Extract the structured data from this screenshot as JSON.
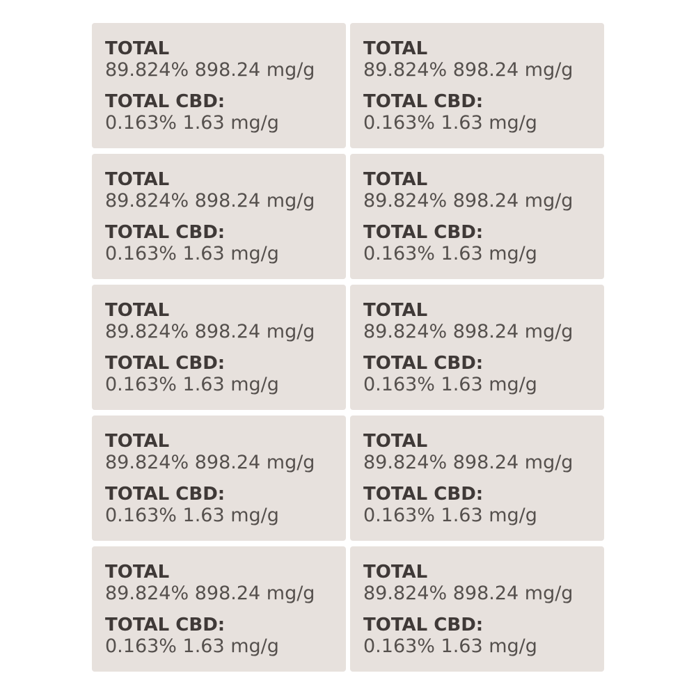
{
  "label_color": "#e7e1dd",
  "labels": [
    {
      "total_heading": "TOTAL",
      "total_value": "89.824% 898.24 mg/g",
      "cbd_heading": "TOTAL CBD:",
      "cbd_value": "0.163% 1.63 mg/g"
    },
    {
      "total_heading": "TOTAL",
      "total_value": "89.824% 898.24 mg/g",
      "cbd_heading": "TOTAL CBD:",
      "cbd_value": "0.163% 1.63 mg/g"
    },
    {
      "total_heading": "TOTAL",
      "total_value": "89.824% 898.24 mg/g",
      "cbd_heading": "TOTAL CBD:",
      "cbd_value": "0.163% 1.63 mg/g"
    },
    {
      "total_heading": "TOTAL",
      "total_value": "89.824% 898.24 mg/g",
      "cbd_heading": "TOTAL CBD:",
      "cbd_value": "0.163% 1.63 mg/g"
    },
    {
      "total_heading": "TOTAL",
      "total_value": "89.824% 898.24 mg/g",
      "cbd_heading": "TOTAL CBD:",
      "cbd_value": "0.163% 1.63 mg/g"
    },
    {
      "total_heading": "TOTAL",
      "total_value": "89.824% 898.24 mg/g",
      "cbd_heading": "TOTAL CBD:",
      "cbd_value": "0.163% 1.63 mg/g"
    },
    {
      "total_heading": "TOTAL",
      "total_value": "89.824% 898.24 mg/g",
      "cbd_heading": "TOTAL CBD:",
      "cbd_value": "0.163% 1.63 mg/g"
    },
    {
      "total_heading": "TOTAL",
      "total_value": "89.824% 898.24 mg/g",
      "cbd_heading": "TOTAL CBD:",
      "cbd_value": "0.163% 1.63 mg/g"
    },
    {
      "total_heading": "TOTAL",
      "total_value": "89.824% 898.24 mg/g",
      "cbd_heading": "TOTAL CBD:",
      "cbd_value": "0.163% 1.63 mg/g"
    },
    {
      "total_heading": "TOTAL",
      "total_value": "89.824% 898.24 mg/g",
      "cbd_heading": "TOTAL CBD:",
      "cbd_value": "0.163% 1.63 mg/g"
    }
  ]
}
